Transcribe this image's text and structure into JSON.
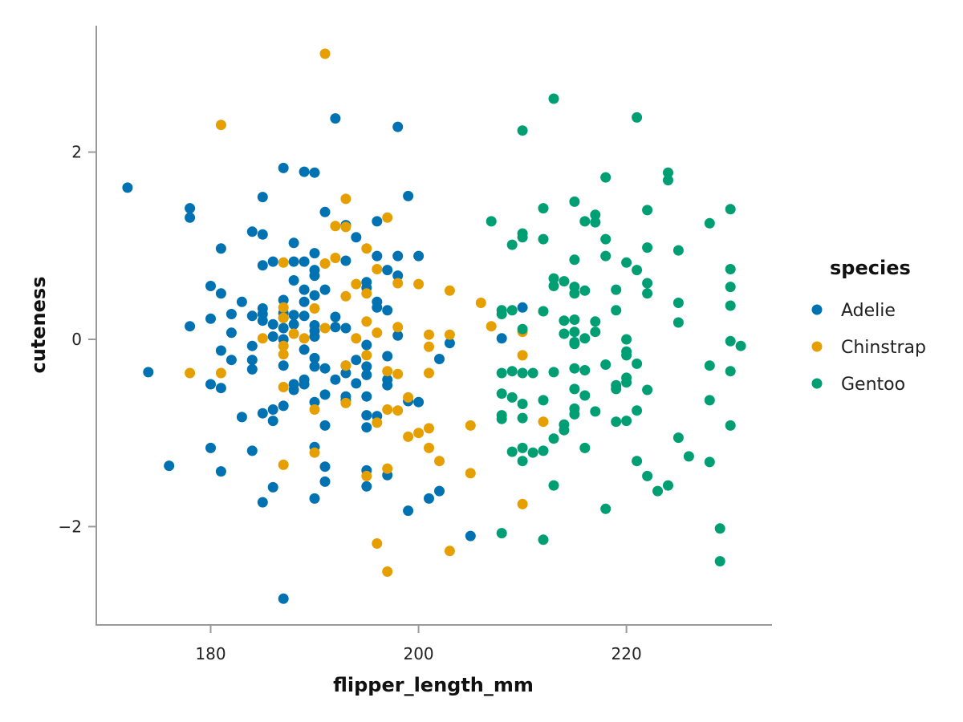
{
  "chart_data": {
    "type": "scatter",
    "title": "",
    "xlabel": "flipper_length_mm",
    "ylabel": "cuteness",
    "xlim": [
      169,
      234
    ],
    "ylim": [
      -3.05,
      3.35
    ],
    "x_ticks": [
      {
        "value": 180,
        "label": "180"
      },
      {
        "value": 200,
        "label": "200"
      },
      {
        "value": 220,
        "label": "220"
      }
    ],
    "y_ticks": [
      {
        "value": -2,
        "label": "−2"
      },
      {
        "value": 0,
        "label": "0"
      },
      {
        "value": 2,
        "label": "2"
      }
    ],
    "grid": false,
    "legend": {
      "title": "species",
      "placement": "right"
    },
    "series": [
      {
        "name": "Adelie",
        "color": "#0072B2",
        "points": [
          [
            172,
            1.62
          ],
          [
            174,
            -0.35
          ],
          [
            176,
            -1.35
          ],
          [
            178,
            1.4
          ],
          [
            178,
            1.3
          ],
          [
            178,
            0.14
          ],
          [
            180,
            0.57
          ],
          [
            180,
            0.22
          ],
          [
            180,
            -0.48
          ],
          [
            180,
            -1.16
          ],
          [
            181,
            0.97
          ],
          [
            181,
            0.49
          ],
          [
            181,
            -0.12
          ],
          [
            181,
            -0.52
          ],
          [
            181,
            -1.41
          ],
          [
            182,
            0.27
          ],
          [
            182,
            0.07
          ],
          [
            182,
            -0.22
          ],
          [
            183,
            0.4
          ],
          [
            183,
            -0.83
          ],
          [
            184,
            1.15
          ],
          [
            184,
            0.25
          ],
          [
            184,
            -0.07
          ],
          [
            184,
            -0.22
          ],
          [
            184,
            -0.32
          ],
          [
            184,
            -1.19
          ],
          [
            185,
            1.52
          ],
          [
            185,
            1.12
          ],
          [
            185,
            0.79
          ],
          [
            185,
            0.33
          ],
          [
            185,
            0.27
          ],
          [
            185,
            0.2
          ],
          [
            185,
            -0.79
          ],
          [
            185,
            -1.74
          ],
          [
            186,
            0.83
          ],
          [
            186,
            0.16
          ],
          [
            186,
            0.03
          ],
          [
            186,
            -0.75
          ],
          [
            186,
            -0.87
          ],
          [
            186,
            -1.58
          ],
          [
            187,
            1.83
          ],
          [
            187,
            0.42
          ],
          [
            187,
            0.28
          ],
          [
            187,
            0.23
          ],
          [
            187,
            0.12
          ],
          [
            187,
            0.0
          ],
          [
            187,
            -0.28
          ],
          [
            187,
            -0.71
          ],
          [
            187,
            -2.77
          ],
          [
            188,
            1.03
          ],
          [
            188,
            0.83
          ],
          [
            188,
            0.63
          ],
          [
            188,
            0.26
          ],
          [
            188,
            0.16
          ],
          [
            188,
            -0.48
          ],
          [
            188,
            -0.54
          ],
          [
            189,
            1.79
          ],
          [
            189,
            0.83
          ],
          [
            189,
            0.53
          ],
          [
            189,
            0.4
          ],
          [
            189,
            0.25
          ],
          [
            189,
            -0.11
          ],
          [
            189,
            -0.43
          ],
          [
            189,
            -0.48
          ],
          [
            190,
            1.78
          ],
          [
            190,
            0.92
          ],
          [
            190,
            0.74
          ],
          [
            190,
            0.68
          ],
          [
            190,
            0.47
          ],
          [
            190,
            0.15
          ],
          [
            190,
            0.09
          ],
          [
            190,
            0.03
          ],
          [
            190,
            -0.2
          ],
          [
            190,
            -0.29
          ],
          [
            190,
            -0.67
          ],
          [
            190,
            -1.15
          ],
          [
            190,
            -1.7
          ],
          [
            191,
            1.36
          ],
          [
            191,
            0.53
          ],
          [
            191,
            -0.31
          ],
          [
            191,
            -0.59
          ],
          [
            191,
            -0.92
          ],
          [
            191,
            -1.36
          ],
          [
            191,
            -1.52
          ],
          [
            192,
            2.36
          ],
          [
            192,
            0.24
          ],
          [
            192,
            0.13
          ],
          [
            192,
            -0.43
          ],
          [
            193,
            1.22
          ],
          [
            193,
            0.84
          ],
          [
            193,
            0.12
          ],
          [
            193,
            -0.28
          ],
          [
            193,
            -0.36
          ],
          [
            193,
            -0.61
          ],
          [
            193,
            -0.65
          ],
          [
            194,
            1.09
          ],
          [
            194,
            -0.22
          ],
          [
            194,
            -0.47
          ],
          [
            195,
            0.61
          ],
          [
            195,
            0.55
          ],
          [
            195,
            -0.06
          ],
          [
            195,
            -0.29
          ],
          [
            195,
            -0.38
          ],
          [
            195,
            -0.61
          ],
          [
            195,
            -0.81
          ],
          [
            195,
            -0.94
          ],
          [
            195,
            -1.4
          ],
          [
            195,
            -1.57
          ],
          [
            196,
            1.26
          ],
          [
            196,
            0.89
          ],
          [
            196,
            0.4
          ],
          [
            196,
            0.34
          ],
          [
            196,
            -0.82
          ],
          [
            197,
            0.74
          ],
          [
            197,
            0.31
          ],
          [
            197,
            -0.18
          ],
          [
            197,
            -0.43
          ],
          [
            197,
            -0.49
          ],
          [
            197,
            -1.45
          ],
          [
            198,
            2.27
          ],
          [
            198,
            0.89
          ],
          [
            198,
            0.68
          ],
          [
            198,
            0.04
          ],
          [
            199,
            1.53
          ],
          [
            199,
            -0.66
          ],
          [
            199,
            -1.83
          ],
          [
            200,
            0.89
          ],
          [
            200,
            -0.67
          ],
          [
            201,
            -1.7
          ],
          [
            202,
            -0.21
          ],
          [
            202,
            -1.62
          ],
          [
            203,
            -0.04
          ],
          [
            205,
            -2.1
          ],
          [
            208,
            0.01
          ],
          [
            210,
            0.34
          ]
        ]
      },
      {
        "name": "Chinstrap",
        "color": "#E69F00",
        "points": [
          [
            178,
            -0.36
          ],
          [
            181,
            2.29
          ],
          [
            181,
            -0.36
          ],
          [
            185,
            0.01
          ],
          [
            187,
            0.82
          ],
          [
            187,
            0.34
          ],
          [
            187,
            0.23
          ],
          [
            187,
            -0.07
          ],
          [
            187,
            -0.16
          ],
          [
            187,
            -0.51
          ],
          [
            187,
            -1.34
          ],
          [
            188,
            0.06
          ],
          [
            189,
            0.01
          ],
          [
            190,
            0.33
          ],
          [
            190,
            -0.75
          ],
          [
            190,
            -1.21
          ],
          [
            191,
            3.05
          ],
          [
            191,
            0.81
          ],
          [
            191,
            0.12
          ],
          [
            192,
            1.21
          ],
          [
            192,
            0.87
          ],
          [
            193,
            1.5
          ],
          [
            193,
            1.2
          ],
          [
            193,
            0.46
          ],
          [
            193,
            -0.28
          ],
          [
            193,
            -0.68
          ],
          [
            194,
            0.59
          ],
          [
            194,
            0.01
          ],
          [
            195,
            0.97
          ],
          [
            195,
            0.49
          ],
          [
            195,
            0.19
          ],
          [
            195,
            -0.17
          ],
          [
            195,
            -1.46
          ],
          [
            196,
            0.75
          ],
          [
            196,
            0.07
          ],
          [
            196,
            -0.89
          ],
          [
            196,
            -2.18
          ],
          [
            197,
            1.3
          ],
          [
            197,
            -0.34
          ],
          [
            197,
            -0.75
          ],
          [
            197,
            -1.38
          ],
          [
            197,
            -2.48
          ],
          [
            198,
            0.6
          ],
          [
            198,
            0.13
          ],
          [
            198,
            -0.37
          ],
          [
            198,
            -0.76
          ],
          [
            199,
            -0.62
          ],
          [
            199,
            -1.04
          ],
          [
            200,
            0.59
          ],
          [
            200,
            -1.0
          ],
          [
            201,
            0.05
          ],
          [
            201,
            -0.08
          ],
          [
            201,
            -0.36
          ],
          [
            201,
            -0.95
          ],
          [
            201,
            -1.16
          ],
          [
            202,
            -1.3
          ],
          [
            203,
            0.52
          ],
          [
            203,
            0.05
          ],
          [
            203,
            -2.26
          ],
          [
            205,
            -0.92
          ],
          [
            205,
            -1.43
          ],
          [
            206,
            0.39
          ],
          [
            207,
            0.14
          ],
          [
            210,
            0.08
          ],
          [
            210,
            -0.17
          ],
          [
            210,
            -1.76
          ],
          [
            212,
            -0.88
          ]
        ]
      },
      {
        "name": "Gentoo",
        "color": "#009E73",
        "points": [
          [
            207,
            1.26
          ],
          [
            208,
            0.31
          ],
          [
            208,
            0.27
          ],
          [
            208,
            -0.36
          ],
          [
            208,
            -0.58
          ],
          [
            208,
            -0.81
          ],
          [
            208,
            -0.85
          ],
          [
            208,
            -2.07
          ],
          [
            209,
            1.01
          ],
          [
            209,
            0.31
          ],
          [
            209,
            -0.34
          ],
          [
            209,
            -0.62
          ],
          [
            209,
            -1.2
          ],
          [
            210,
            2.23
          ],
          [
            210,
            1.13
          ],
          [
            210,
            1.09
          ],
          [
            210,
            0.11
          ],
          [
            210,
            -0.36
          ],
          [
            210,
            -0.69
          ],
          [
            210,
            -0.84
          ],
          [
            210,
            -1.16
          ],
          [
            210,
            -1.3
          ],
          [
            211,
            -0.36
          ],
          [
            211,
            -1.21
          ],
          [
            212,
            1.4
          ],
          [
            212,
            1.07
          ],
          [
            212,
            0.3
          ],
          [
            212,
            -0.65
          ],
          [
            212,
            -1.19
          ],
          [
            212,
            -2.14
          ],
          [
            213,
            2.57
          ],
          [
            213,
            0.65
          ],
          [
            213,
            0.57
          ],
          [
            213,
            -0.35
          ],
          [
            213,
            -1.06
          ],
          [
            213,
            -1.56
          ],
          [
            214,
            0.62
          ],
          [
            214,
            0.2
          ],
          [
            214,
            0.06
          ],
          [
            214,
            -0.91
          ],
          [
            214,
            -0.97
          ],
          [
            215,
            1.47
          ],
          [
            215,
            0.85
          ],
          [
            215,
            0.56
          ],
          [
            215,
            0.49
          ],
          [
            215,
            0.21
          ],
          [
            215,
            0.08
          ],
          [
            215,
            -0.03
          ],
          [
            215,
            -0.05
          ],
          [
            215,
            -0.31
          ],
          [
            215,
            -0.53
          ],
          [
            215,
            -0.74
          ],
          [
            215,
            -0.8
          ],
          [
            216,
            1.26
          ],
          [
            216,
            0.52
          ],
          [
            216,
            0.01
          ],
          [
            216,
            -0.33
          ],
          [
            216,
            -0.6
          ],
          [
            216,
            -1.16
          ],
          [
            217,
            1.33
          ],
          [
            217,
            1.25
          ],
          [
            217,
            0.19
          ],
          [
            217,
            0.08
          ],
          [
            217,
            -0.77
          ],
          [
            218,
            1.73
          ],
          [
            218,
            1.07
          ],
          [
            218,
            0.89
          ],
          [
            218,
            -0.27
          ],
          [
            218,
            -1.81
          ],
          [
            219,
            0.53
          ],
          [
            219,
            0.31
          ],
          [
            219,
            -0.49
          ],
          [
            219,
            -0.53
          ],
          [
            219,
            -0.88
          ],
          [
            220,
            0.82
          ],
          [
            220,
            0.0
          ],
          [
            220,
            -0.13
          ],
          [
            220,
            -0.17
          ],
          [
            220,
            -0.41
          ],
          [
            220,
            -0.46
          ],
          [
            220,
            -0.87
          ],
          [
            221,
            2.37
          ],
          [
            221,
            0.74
          ],
          [
            221,
            -0.26
          ],
          [
            221,
            -0.76
          ],
          [
            221,
            -1.3
          ],
          [
            222,
            1.38
          ],
          [
            222,
            0.98
          ],
          [
            222,
            0.6
          ],
          [
            222,
            0.49
          ],
          [
            222,
            -0.54
          ],
          [
            222,
            -1.46
          ],
          [
            223,
            -1.62
          ],
          [
            224,
            1.78
          ],
          [
            224,
            1.7
          ],
          [
            224,
            -1.56
          ],
          [
            225,
            0.95
          ],
          [
            225,
            0.39
          ],
          [
            225,
            0.18
          ],
          [
            225,
            -1.05
          ],
          [
            226,
            -1.25
          ],
          [
            228,
            1.24
          ],
          [
            228,
            -0.28
          ],
          [
            228,
            -0.65
          ],
          [
            228,
            -1.31
          ],
          [
            229,
            -2.02
          ],
          [
            229,
            -2.37
          ],
          [
            230,
            1.39
          ],
          [
            230,
            0.75
          ],
          [
            230,
            0.56
          ],
          [
            230,
            0.36
          ],
          [
            230,
            -0.02
          ],
          [
            230,
            -0.34
          ],
          [
            230,
            -0.92
          ],
          [
            231,
            -0.07
          ]
        ]
      }
    ]
  }
}
